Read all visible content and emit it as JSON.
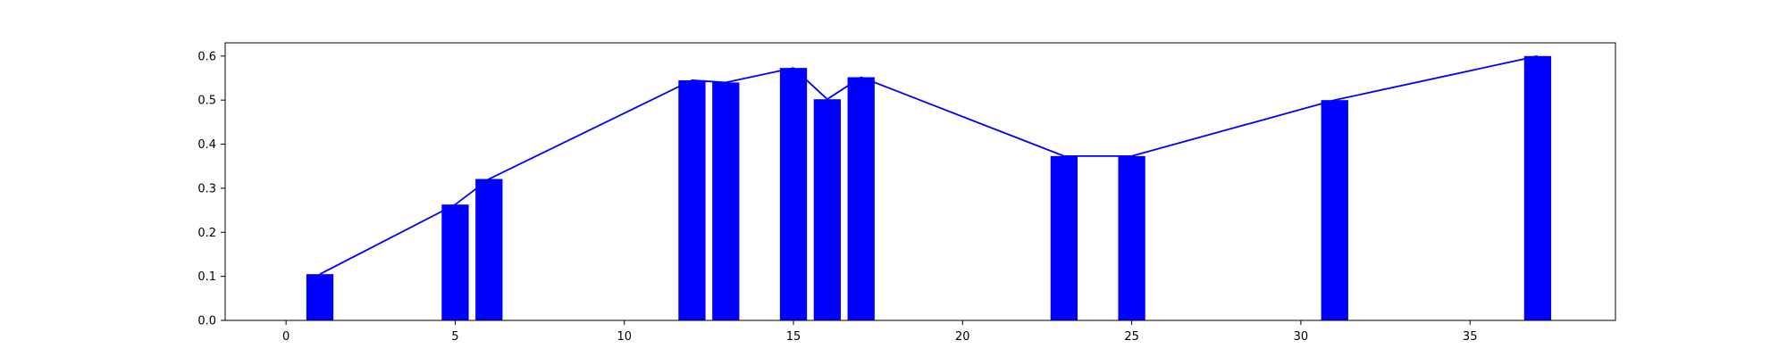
{
  "chart_data": {
    "type": "bar",
    "x": [
      1,
      5,
      6,
      12,
      13,
      15,
      16,
      17,
      23,
      25,
      31,
      37
    ],
    "values": [
      0.105,
      0.263,
      0.321,
      0.545,
      0.54,
      0.573,
      0.502,
      0.552,
      0.373,
      0.373,
      0.5,
      0.6
    ],
    "title": "",
    "xlabel": "",
    "ylabel": "",
    "xlim": [
      -1.8,
      39.3
    ],
    "ylim": [
      0,
      0.63
    ],
    "xticks": [
      0,
      5,
      10,
      15,
      20,
      25,
      30,
      35
    ],
    "yticks": [
      0.0,
      0.1,
      0.2,
      0.3,
      0.4,
      0.5,
      0.6
    ],
    "xtick_labels": [
      "0",
      "5",
      "10",
      "15",
      "20",
      "25",
      "30",
      "35"
    ],
    "ytick_labels": [
      "0.0",
      "0.1",
      "0.2",
      "0.3",
      "0.4",
      "0.5",
      "0.6"
    ],
    "overlay_line": true,
    "grid": false,
    "legend": "none",
    "colors": {
      "bar": "#0000ff",
      "line": "#0000ff",
      "axis": "#000000"
    }
  }
}
